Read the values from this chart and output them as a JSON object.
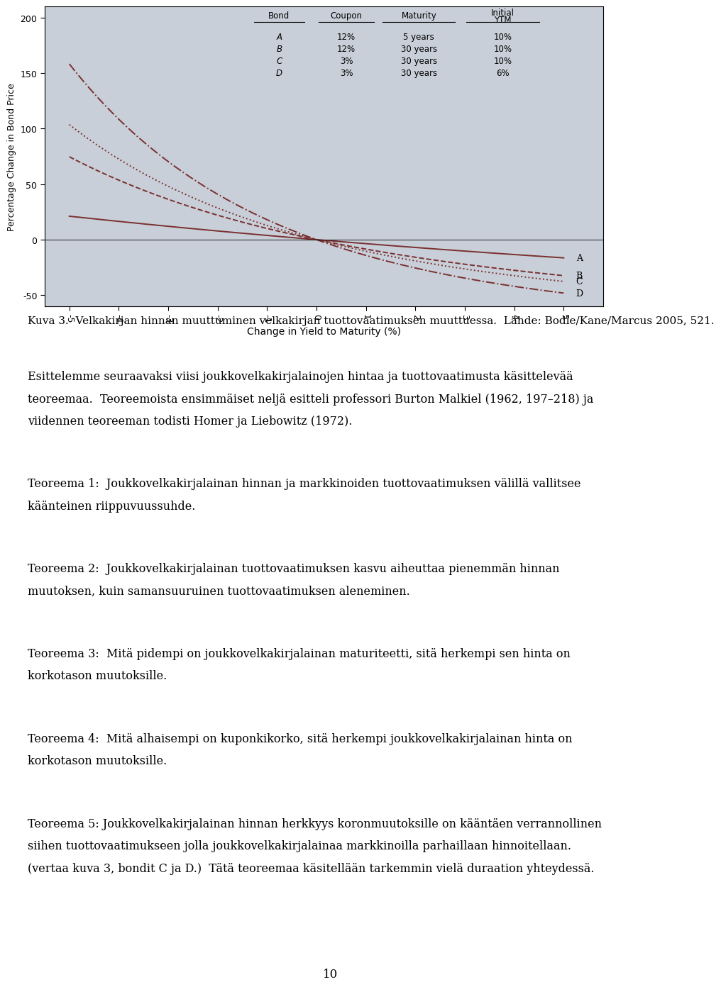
{
  "chart_bg_color": "#c8cfd8",
  "plot_bg_color": "#c8cfd8",
  "ylabel": "Percentage Change in Bond Price",
  "xlabel": "Change in Yield to Maturity (%)",
  "ylim": [
    -60,
    210
  ],
  "xlim": [
    -5.5,
    5.8
  ],
  "yticks": [
    -50,
    0,
    50,
    100,
    150,
    200
  ],
  "xticks": [
    -5,
    -4,
    -3,
    -2,
    -1,
    0,
    1,
    2,
    3,
    4,
    5
  ],
  "xtick_labels": [
    "-5",
    "-4",
    "-3",
    "-2",
    "-1",
    "0",
    "1",
    "2",
    "3",
    "4",
    "5"
  ],
  "table_data": [
    [
      "A",
      "12%",
      "5 years",
      "10%"
    ],
    [
      "B",
      "12%",
      "30 years",
      "10%"
    ],
    [
      "C",
      "3%",
      "30 years",
      "10%"
    ],
    [
      "D",
      "3%",
      "30 years",
      "6%"
    ]
  ],
  "line_color": "#7a3030",
  "fig_bg_color": "#ffffff",
  "caption": "Kuva 3.  Velkakirjan hinnan muuttuminen velkakirjan tuottovaatimuksen muuttuessa.  Lähde: Bodie/Kane/Marcus 2005, 521.",
  "para1_line1": "Esittelemme seuraavaksi viisi joukkovelkakirjalainojen hintaa ja tuottovaatimusta käsittelevää",
  "para1_line2": "teoreemaa.  Teoreemoista ensimmäiset neljä esitteli professori Burton Malkiel (1962, 197–218) ja",
  "para1_line3": "viidennen teoreeman todisti Homer ja Liebowitz (1972).",
  "t1_line1": "Teoreema 1:  Joukkovelkakirjalainan hinnan ja markkinoiden tuottovaatimuksen välillä vallitsee",
  "t1_line2": "käänteinen riippuvuussuhde.",
  "t2_line1": "Teoreema 2:  Joukkovelkakirjalainan tuottovaatimuksen kasvu aiheuttaa pienemmän hinnan",
  "t2_line2": "muutoksen, kuin samansuuruinen tuottovaatimuksen aleneminen.",
  "t3_line1": "Teoreema 3:  Mitä pidempi on joukkovelkakirjalainan maturiteetti, sitä herkempi sen hinta on",
  "t3_line2": "korkotason muutoksille.",
  "t4_line1": "Teoreema 4:  Mitä alhaisempi on kuponkikorko, sitä herkempi joukkovelkakirjalainan hinta on",
  "t4_line2": "korkotason muutoksille.",
  "t5_line1": "Teoreema 5: Joukkovelkakirjalainan hinnan herkkyys koronmuutoksille on kääntäen verrannollinen",
  "t5_line2": "siihen tuottovaatimukseen jolla joukkovelkakirjalainaa markkinoilla parhaillaan hinnoitellaan.",
  "t5_line3": "(vertaa kuva 3, bondit C ja D.)  Tätä teoreemaa käsitellään tarkemmin vielä duraation yhteydessä.",
  "page_number": "10"
}
